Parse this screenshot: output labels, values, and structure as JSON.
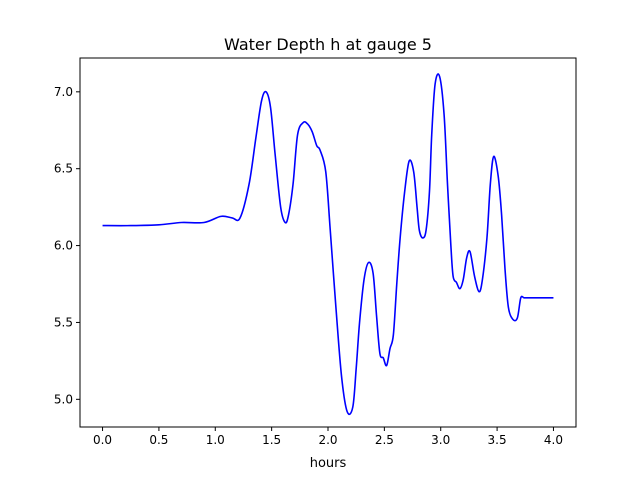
{
  "chart_data": {
    "type": "line",
    "title": "Water Depth h at gauge 5",
    "xlabel": "hours",
    "ylabel": "",
    "xlim": [
      -0.2,
      4.2
    ],
    "ylim": [
      4.82,
      7.22
    ],
    "xticks": [
      0.0,
      0.5,
      1.0,
      1.5,
      2.0,
      2.5,
      3.0,
      3.5,
      4.0
    ],
    "xtick_labels": [
      "0.0",
      "0.5",
      "1.0",
      "1.5",
      "2.0",
      "2.5",
      "3.0",
      "3.5",
      "4.0"
    ],
    "yticks": [
      5.0,
      5.5,
      6.0,
      6.5,
      7.0
    ],
    "ytick_labels": [
      "5.0",
      "5.5",
      "6.0",
      "6.5",
      "7.0"
    ],
    "grid": false,
    "series": [
      {
        "color": "#0000ff",
        "x": [
          0.0,
          0.25,
          0.5,
          0.7,
          0.9,
          1.05,
          1.15,
          1.22,
          1.3,
          1.36,
          1.41,
          1.45,
          1.49,
          1.53,
          1.58,
          1.62,
          1.65,
          1.69,
          1.73,
          1.78,
          1.82,
          1.86,
          1.9,
          1.93,
          1.98,
          2.02,
          2.07,
          2.12,
          2.17,
          2.22,
          2.25,
          2.28,
          2.32,
          2.36,
          2.4,
          2.43,
          2.46,
          2.49,
          2.52,
          2.55,
          2.58,
          2.61,
          2.64,
          2.68,
          2.72,
          2.76,
          2.79,
          2.81,
          2.84,
          2.87,
          2.9,
          2.92,
          2.95,
          2.99,
          3.03,
          3.06,
          3.09,
          3.11,
          3.14,
          3.17,
          3.2,
          3.23,
          3.26,
          3.3,
          3.34,
          3.37,
          3.41,
          3.44,
          3.47,
          3.51,
          3.54,
          3.57,
          3.6,
          3.64,
          3.68,
          3.71,
          3.74,
          3.78,
          3.82,
          3.86,
          3.9,
          3.93,
          3.96,
          3.99,
          4.0
        ],
        "y": [
          6.13,
          6.13,
          6.135,
          6.15,
          6.15,
          6.19,
          6.18,
          6.18,
          6.4,
          6.7,
          6.94,
          7.0,
          6.9,
          6.6,
          6.25,
          6.15,
          6.2,
          6.4,
          6.72,
          6.8,
          6.79,
          6.74,
          6.65,
          6.62,
          6.48,
          6.1,
          5.6,
          5.15,
          4.92,
          4.95,
          5.2,
          5.5,
          5.78,
          5.89,
          5.82,
          5.55,
          5.3,
          5.27,
          5.22,
          5.33,
          5.42,
          5.75,
          6.05,
          6.35,
          6.55,
          6.48,
          6.25,
          6.1,
          6.05,
          6.1,
          6.35,
          6.72,
          7.05,
          7.1,
          6.85,
          6.4,
          6.0,
          5.8,
          5.76,
          5.72,
          5.78,
          5.92,
          5.96,
          5.8,
          5.7,
          5.78,
          6.05,
          6.4,
          6.58,
          6.45,
          6.2,
          5.85,
          5.6,
          5.52,
          5.53,
          5.66,
          5.66,
          5.66,
          5.66,
          5.66,
          5.66,
          5.66,
          5.66,
          5.66,
          5.66
        ]
      }
    ]
  }
}
